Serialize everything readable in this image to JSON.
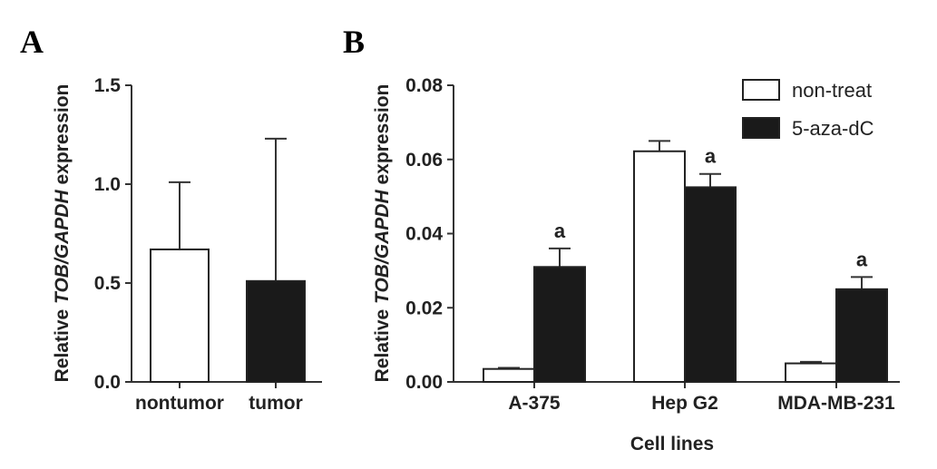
{
  "chart_data": [
    {
      "panel_label": "A",
      "type": "bar",
      "categories": [
        "nontumor",
        "tumor"
      ],
      "values": [
        0.67,
        0.51
      ],
      "errors": [
        0.34,
        0.72
      ],
      "bar_colors": [
        "#ffffff",
        "#1a1a1a"
      ],
      "ylabel_prefix": "Relative ",
      "ylabel_italic": "TOB/GAPDH",
      "ylabel_suffix": " expression",
      "ylim": [
        0,
        1.5
      ],
      "yticks": [
        "0.0",
        "0.5",
        "1.0",
        "1.5"
      ],
      "grid": false
    },
    {
      "panel_label": "B",
      "type": "bar",
      "categories": [
        "A-375",
        "Hep G2",
        "MDA-MB-231"
      ],
      "series": [
        {
          "name": "non-treat",
          "color": "#ffffff",
          "values": [
            0.0035,
            0.0622,
            0.005
          ],
          "errors": [
            0.0003,
            0.0028,
            0.0004
          ],
          "annotations": [
            "",
            "",
            ""
          ]
        },
        {
          "name": "5-aza-dC",
          "color": "#1a1a1a",
          "values": [
            0.031,
            0.0525,
            0.025
          ],
          "errors": [
            0.005,
            0.0036,
            0.0033
          ],
          "annotations": [
            "a",
            "a",
            "a"
          ]
        }
      ],
      "xlabel": "Cell lines",
      "ylabel_prefix": "Relative ",
      "ylabel_italic": "TOB/GAPDH",
      "ylabel_suffix": " expression",
      "ylim": [
        0,
        0.08
      ],
      "yticks": [
        "0.00",
        "0.02",
        "0.04",
        "0.06",
        "0.08"
      ],
      "legend_position": "top-right",
      "grid": false
    }
  ]
}
